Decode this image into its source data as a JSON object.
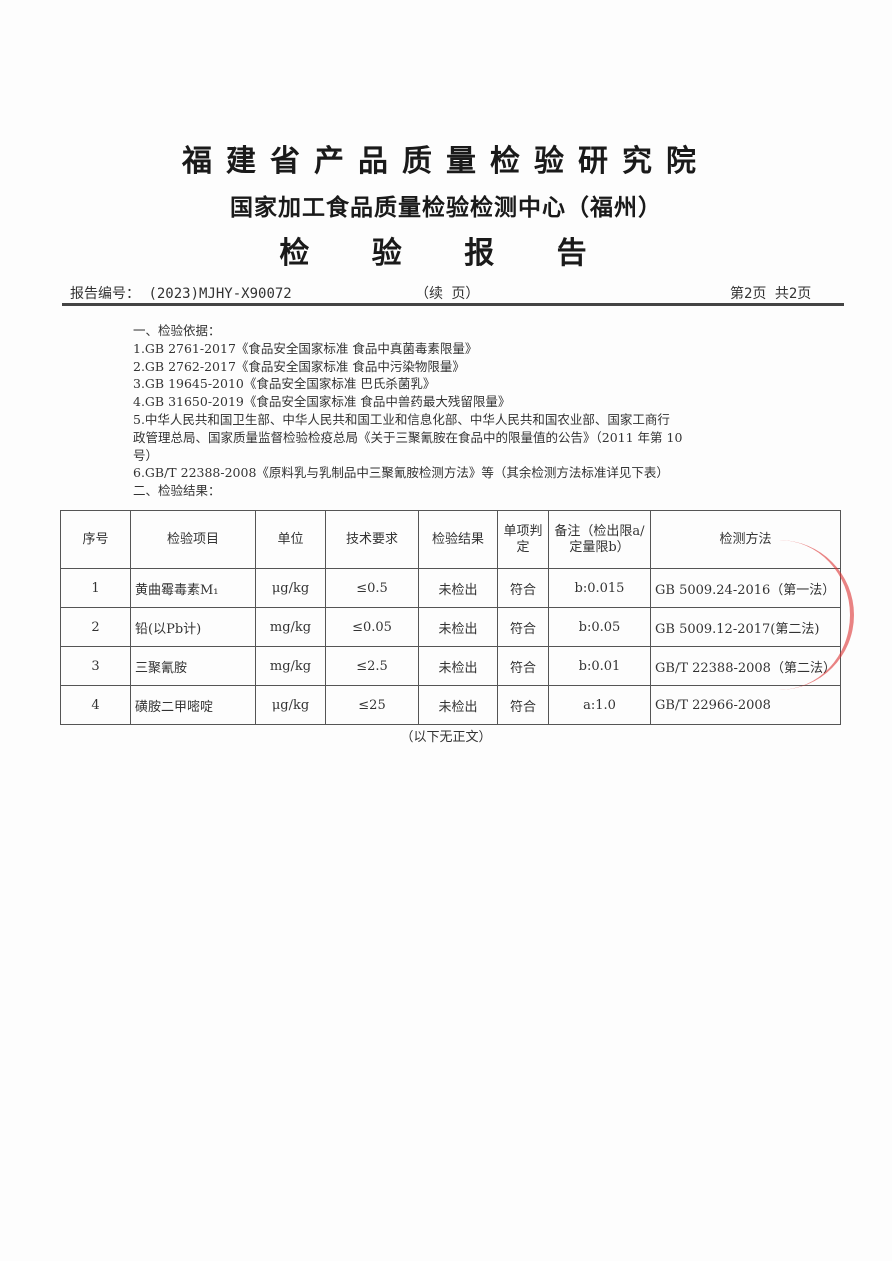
{
  "header": {
    "institute": "福建省产品质量检验研究院",
    "center": "国家加工食品质量检验检测中心（福州）",
    "doc_title": "检 验 报 告",
    "report_no_label": "报告编号：",
    "report_no": "(2023)MJHY-X90072",
    "continued": "（续 页）",
    "page_info": "第2页 共2页"
  },
  "basis": {
    "heading": "一、检验依据：",
    "items": [
      "1.GB 2761-2017《食品安全国家标准 食品中真菌毒素限量》",
      "2.GB 2762-2017《食品安全国家标准 食品中污染物限量》",
      "3.GB 19645-2010《食品安全国家标准 巴氏杀菌乳》",
      "4.GB 31650-2019《食品安全国家标准 食品中兽药最大残留限量》",
      "5.中华人民共和国卫生部、中华人民共和国工业和信息化部、中华人民共和国农业部、国家工商行",
      "政管理总局、国家质量监督检验检疫总局《关于三聚氰胺在食品中的限量值的公告》（2011 年第 10",
      "号）",
      "6.GB/T 22388-2008《原料乳与乳制品中三聚氰胺检测方法》等（其余检测方法标准详见下表）"
    ],
    "results_heading": "二、检验结果："
  },
  "table": {
    "headers": [
      "序号",
      "检验项目",
      "单位",
      "技术要求",
      "检验结果",
      "单项判定",
      "备注（检出限a/定量限b）",
      "检测方法"
    ],
    "rows": [
      [
        "1",
        "黄曲霉毒素M₁",
        "μg/kg",
        "≤0.5",
        "未检出",
        "符合",
        "b:0.015",
        "GB 5009.24-2016（第一法）"
      ],
      [
        "2",
        "铅(以Pb计)",
        "mg/kg",
        "≤0.05",
        "未检出",
        "符合",
        "b:0.05",
        "GB 5009.12-2017(第二法)"
      ],
      [
        "3",
        "三聚氰胺",
        "mg/kg",
        "≤2.5",
        "未检出",
        "符合",
        "b:0.01",
        "GB/T 22388-2008（第二法）"
      ],
      [
        "4",
        "磺胺二甲嘧啶",
        "μg/kg",
        "≤25",
        "未检出",
        "符合",
        "a:1.0",
        "GB/T 22966-2008"
      ]
    ]
  },
  "footer": {
    "end_note": "（以下无正文）"
  },
  "colors": {
    "seal": "#dc3232"
  }
}
